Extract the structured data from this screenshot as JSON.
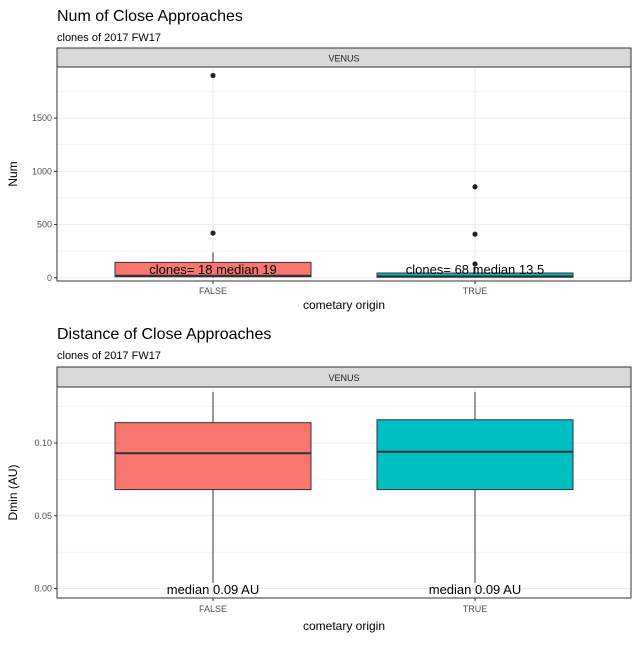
{
  "chart_data": [
    {
      "type": "box",
      "title": "Num of Close Approaches",
      "subtitle": "clones of 2017 FW17",
      "facet": "VENUS",
      "xlabel": "cometary origin",
      "ylabel": "Num",
      "categories": [
        "FALSE",
        "TRUE"
      ],
      "ylim": [
        -30,
        1980
      ],
      "yticks": [
        0,
        500,
        1000,
        1500
      ],
      "tick_labels": [
        "0",
        "500",
        "1000",
        "1500"
      ],
      "colors": [
        "#F8766D",
        "#00BFC4"
      ],
      "boxes": [
        {
          "category": "FALSE",
          "q1": 10,
          "median": 19,
          "q3": 145,
          "whisker_low": 0,
          "whisker_high": 240,
          "outliers": [
            420,
            1900
          ]
        },
        {
          "category": "TRUE",
          "q1": 5,
          "median": 13.5,
          "q3": 45,
          "whisker_low": 0,
          "whisker_high": 100,
          "outliers": [
            130,
            410,
            855
          ]
        }
      ],
      "annotations": [
        "clones= 18 median 19",
        "clones= 68 median 13.5"
      ],
      "grid": true
    },
    {
      "type": "box",
      "title": "Distance of Close Approaches",
      "subtitle": "clones of 2017 FW17",
      "facet": "VENUS",
      "xlabel": "cometary origin",
      "ylabel": "Dmin (AU)",
      "categories": [
        "FALSE",
        "TRUE"
      ],
      "ylim": [
        -0.0065,
        0.1385
      ],
      "yticks": [
        0.0,
        0.05,
        0.1
      ],
      "tick_labels": [
        "0.00",
        "0.05",
        "0.10"
      ],
      "colors": [
        "#F8766D",
        "#00BFC4"
      ],
      "boxes": [
        {
          "category": "FALSE",
          "q1": 0.068,
          "median": 0.093,
          "q3": 0.114,
          "whisker_low": 0.004,
          "whisker_high": 0.135,
          "outliers": []
        },
        {
          "category": "TRUE",
          "q1": 0.068,
          "median": 0.094,
          "q3": 0.116,
          "whisker_low": 0.004,
          "whisker_high": 0.135,
          "outliers": []
        }
      ],
      "annotations": [
        "median 0.09 AU",
        "median 0.09 AU"
      ],
      "grid": true
    }
  ]
}
